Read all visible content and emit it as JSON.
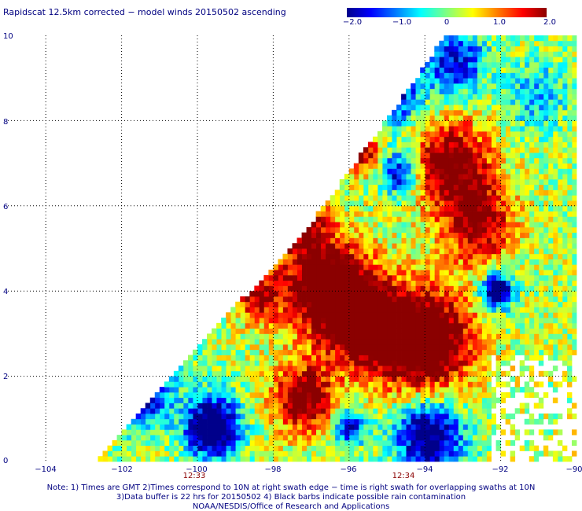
{
  "title": "Rapidscat 12.5km corrected − model winds 20150502 ascending",
  "colorbar": {
    "labels": [
      "−2.0",
      "−1.0",
      "0",
      "1.0",
      "2.0"
    ],
    "stops": [
      "#00008b",
      "#0000ff",
      "#0080ff",
      "#00ffff",
      "#80ff80",
      "#ffff00",
      "#ff8000",
      "#ff0000",
      "#8b0000"
    ]
  },
  "chart_data": {
    "type": "heatmap",
    "title": "Rapidscat 12.5km corrected − model winds 20150502 ascending",
    "x_ticks": [
      "−104",
      "−102",
      "−100",
      "−98",
      "−96",
      "−94",
      "−92",
      "−90"
    ],
    "y_ticks": [
      "0",
      "2",
      "4",
      "6",
      "8",
      "10"
    ],
    "xlim": [
      -105,
      -90
    ],
    "ylim": [
      0,
      10
    ],
    "value_range": [
      -2.0,
      2.0
    ],
    "grid": true,
    "swath_edge": [
      [
        -102.8,
        0
      ],
      [
        -101,
        1.8
      ],
      [
        -99.2,
        3.5
      ],
      [
        -97.3,
        5.3
      ],
      [
        -95.9,
        7
      ],
      [
        -94.9,
        8.2
      ],
      [
        -93.9,
        9.5
      ],
      [
        -93.5,
        10
      ]
    ],
    "time_labels": [
      {
        "lon": -100,
        "text": "12:33"
      },
      {
        "lon": -94,
        "text": "12:34"
      }
    ]
  },
  "notes": [
    "Note: 1) Times are GMT 2)Times correspond to 10N at right swath edge − time is right swath for overlapping swaths at 10N",
    "3)Data buffer is 22 hrs for 20150502 4) Black barbs indicate possible rain contamination",
    "NOAA/NESDIS/Office of Research and Applications"
  ]
}
